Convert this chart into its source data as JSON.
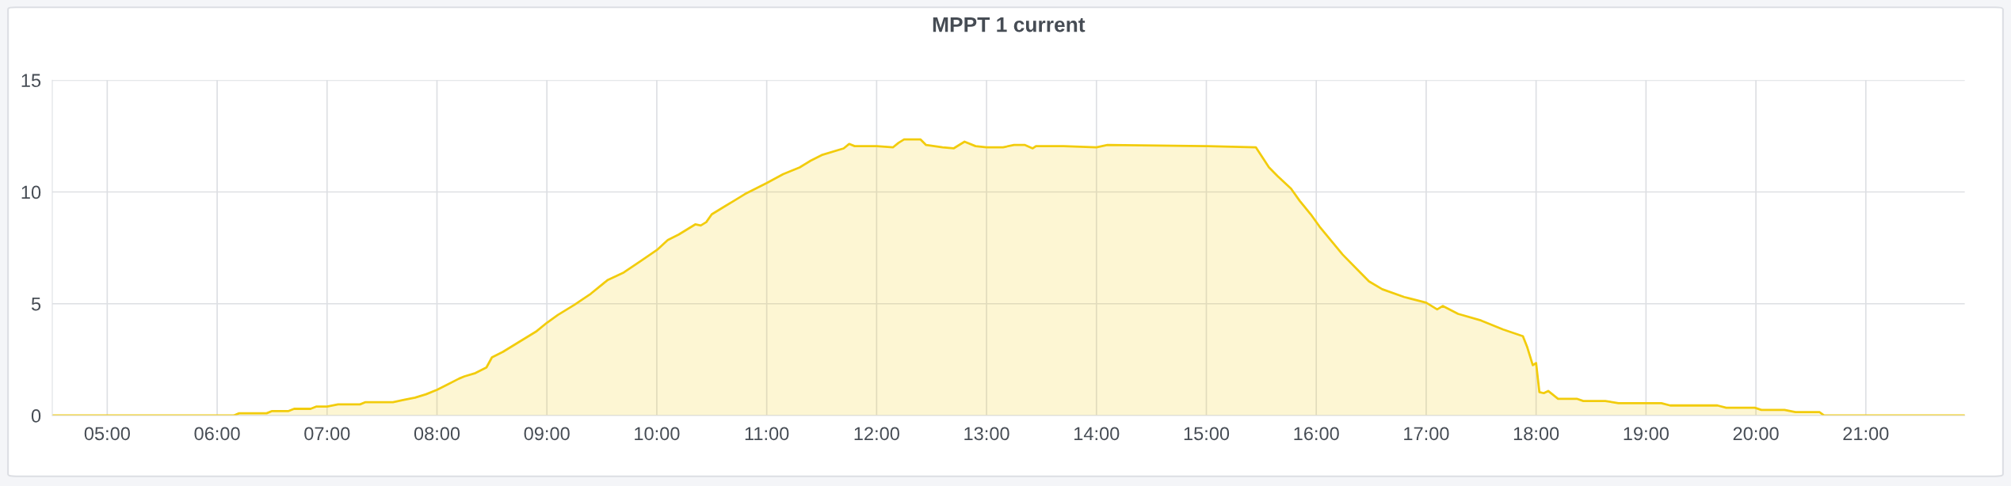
{
  "chart_data": {
    "type": "area",
    "title": "MPPT 1 current",
    "x": [
      4.5,
      6.15,
      6.2,
      6.45,
      6.5,
      6.65,
      6.7,
      6.85,
      6.9,
      7.0,
      7.1,
      7.3,
      7.35,
      7.6,
      7.7,
      7.8,
      7.9,
      8.0,
      8.1,
      8.2,
      8.25,
      8.35,
      8.45,
      8.5,
      8.6,
      8.75,
      8.9,
      9.0,
      9.1,
      9.25,
      9.4,
      9.55,
      9.7,
      9.85,
      10.0,
      10.1,
      10.2,
      10.35,
      10.4,
      10.45,
      10.5,
      10.6,
      10.7,
      10.8,
      11.0,
      11.15,
      11.3,
      11.4,
      11.5,
      11.7,
      11.75,
      11.8,
      12.0,
      12.15,
      12.2,
      12.25,
      12.4,
      12.45,
      12.6,
      12.7,
      12.8,
      12.9,
      13.0,
      13.15,
      13.25,
      13.35,
      13.42,
      13.45,
      13.7,
      14.0,
      14.1,
      15.0,
      15.45,
      15.57,
      15.65,
      15.77,
      15.85,
      15.95,
      16.03,
      16.24,
      16.4,
      16.48,
      16.6,
      16.8,
      17.0,
      17.1,
      17.15,
      17.29,
      17.5,
      17.7,
      17.88,
      17.92,
      17.97,
      18.0,
      18.03,
      18.07,
      18.11,
      18.2,
      18.37,
      18.43,
      18.63,
      18.75,
      19.14,
      19.22,
      19.65,
      19.73,
      19.99,
      20.05,
      20.26,
      20.36,
      20.58,
      20.62,
      21.9
    ],
    "series": [
      {
        "color": "#f2cc0c",
        "values": [
          0,
          0,
          0.1,
          0.1,
          0.2,
          0.2,
          0.3,
          0.3,
          0.4,
          0.4,
          0.5,
          0.5,
          0.6,
          0.6,
          0.7,
          0.8,
          0.95,
          1.15,
          1.4,
          1.65,
          1.75,
          1.9,
          2.15,
          2.6,
          2.85,
          3.3,
          3.75,
          4.15,
          4.5,
          4.95,
          5.45,
          6.05,
          6.4,
          6.9,
          7.4,
          7.85,
          8.1,
          8.55,
          8.5,
          8.65,
          9.0,
          9.3,
          9.6,
          9.9,
          10.4,
          10.8,
          11.1,
          11.4,
          11.65,
          11.95,
          12.15,
          12.05,
          12.05,
          12.0,
          12.2,
          12.35,
          12.35,
          12.1,
          12.0,
          11.95,
          12.25,
          12.05,
          12.0,
          12.0,
          12.1,
          12.1,
          11.95,
          12.05,
          12.05,
          12.0,
          12.1,
          12.05,
          12.0,
          11.1,
          10.7,
          10.15,
          9.6,
          9.0,
          8.45,
          7.2,
          6.4,
          6.0,
          5.65,
          5.3,
          5.05,
          4.75,
          4.9,
          4.55,
          4.25,
          3.85,
          3.55,
          3.05,
          2.25,
          2.35,
          1.05,
          1.0,
          1.1,
          0.75,
          0.75,
          0.65,
          0.65,
          0.55,
          0.55,
          0.45,
          0.45,
          0.35,
          0.35,
          0.25,
          0.25,
          0.15,
          0.15,
          0,
          0
        ]
      }
    ],
    "xlim": [
      4.5,
      21.9
    ],
    "xticks": [
      {
        "value": 5,
        "label": "05:00"
      },
      {
        "value": 6,
        "label": "06:00"
      },
      {
        "value": 7,
        "label": "07:00"
      },
      {
        "value": 8,
        "label": "08:00"
      },
      {
        "value": 9,
        "label": "09:00"
      },
      {
        "value": 10,
        "label": "10:00"
      },
      {
        "value": 11,
        "label": "11:00"
      },
      {
        "value": 12,
        "label": "12:00"
      },
      {
        "value": 13,
        "label": "13:00"
      },
      {
        "value": 14,
        "label": "14:00"
      },
      {
        "value": 15,
        "label": "15:00"
      },
      {
        "value": 16,
        "label": "16:00"
      },
      {
        "value": 17,
        "label": "17:00"
      },
      {
        "value": 18,
        "label": "18:00"
      },
      {
        "value": 19,
        "label": "19:00"
      },
      {
        "value": 20,
        "label": "20:00"
      },
      {
        "value": 21,
        "label": "21:00"
      }
    ],
    "ylim": [
      0,
      15
    ],
    "yticks": [
      0,
      5,
      10,
      15
    ],
    "grid": true
  }
}
